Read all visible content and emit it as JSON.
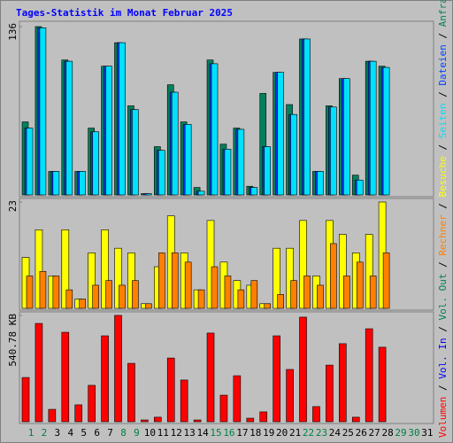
{
  "title": "Tages-Statistik im Monat Februar 2025",
  "legend_separator": " / ",
  "weekend_color": "#008040",
  "weekend_categories": [
    "1",
    "2",
    "8",
    "9",
    "15",
    "16",
    "22",
    "23",
    "29",
    "30"
  ],
  "chart_data": [
    {
      "type": "bar",
      "ylim": [
        0,
        136
      ],
      "yticks": [
        136
      ],
      "series": [
        {
          "name": "Anfragen",
          "color": "#00805c",
          "values": [
            59,
            136,
            19,
            109,
            19,
            54,
            104,
            123,
            72,
            1,
            39,
            89,
            59,
            6,
            109,
            41,
            54,
            7,
            82,
            99,
            73,
            126,
            19,
            72,
            94,
            16,
            108,
            104,
            null,
            null,
            null
          ]
        },
        {
          "name": "Dateien",
          "color": "#0040ff",
          "values": [
            54,
            135,
            19,
            108,
            19,
            51,
            104,
            123,
            69,
            1,
            36,
            83,
            57,
            3,
            106,
            37,
            53,
            6,
            39,
            99,
            65,
            126,
            19,
            71,
            94,
            12,
            108,
            103,
            null,
            null,
            null
          ]
        },
        {
          "name": "Seiten",
          "color": "#00e0ff",
          "values": [
            54,
            135,
            19,
            108,
            19,
            51,
            104,
            123,
            69,
            1,
            36,
            83,
            57,
            3,
            106,
            37,
            53,
            6,
            39,
            99,
            65,
            126,
            19,
            71,
            94,
            12,
            108,
            103,
            null,
            null,
            null
          ]
        }
      ]
    },
    {
      "type": "bar",
      "ylim": [
        0,
        23
      ],
      "yticks": [
        23
      ],
      "series": [
        {
          "name": "Besuche",
          "color": "#ffff00",
          "values": [
            11,
            17,
            7,
            17,
            2,
            12,
            17,
            13,
            12,
            1,
            9,
            20,
            12,
            4,
            19,
            10,
            6,
            5,
            1,
            13,
            13,
            19,
            7,
            19,
            16,
            12,
            16,
            23,
            null,
            null,
            null
          ]
        },
        {
          "name": "Rechner",
          "color": "#ff8000",
          "values": [
            7,
            8,
            7,
            4,
            2,
            5,
            6,
            5,
            6,
            1,
            12,
            12,
            10,
            4,
            9,
            7,
            4,
            6,
            1,
            3,
            6,
            7,
            5,
            14,
            7,
            10,
            7,
            12,
            null,
            null,
            null
          ]
        }
      ]
    },
    {
      "type": "bar",
      "ylim": [
        0,
        540.78
      ],
      "yticks": [
        {
          "value": 540.78,
          "label": "540.78 KB"
        }
      ],
      "categories": [
        "1",
        "2",
        "3",
        "4",
        "5",
        "6",
        "7",
        "8",
        "9",
        "10",
        "11",
        "12",
        "13",
        "14",
        "15",
        "16",
        "17",
        "18",
        "19",
        "20",
        "21",
        "22",
        "23",
        "24",
        "25",
        "26",
        "27",
        "28",
        "29",
        "30",
        "31"
      ],
      "series": [
        {
          "name": "Volumen",
          "color": "#ff0000",
          "values": [
            225,
            500,
            63,
            455,
            86,
            185,
            437,
            541,
            297,
            9,
            23,
            324,
            212,
            9,
            451,
            135,
            234,
            18,
            50,
            437,
            266,
            532,
            77,
            288,
            397,
            23,
            473,
            379,
            null,
            null,
            null
          ]
        }
      ],
      "legend_only": [
        {
          "name": "Vol. In",
          "color": "#0000ff"
        },
        {
          "name": "Vol. Out",
          "color": "#00805c"
        }
      ]
    }
  ]
}
